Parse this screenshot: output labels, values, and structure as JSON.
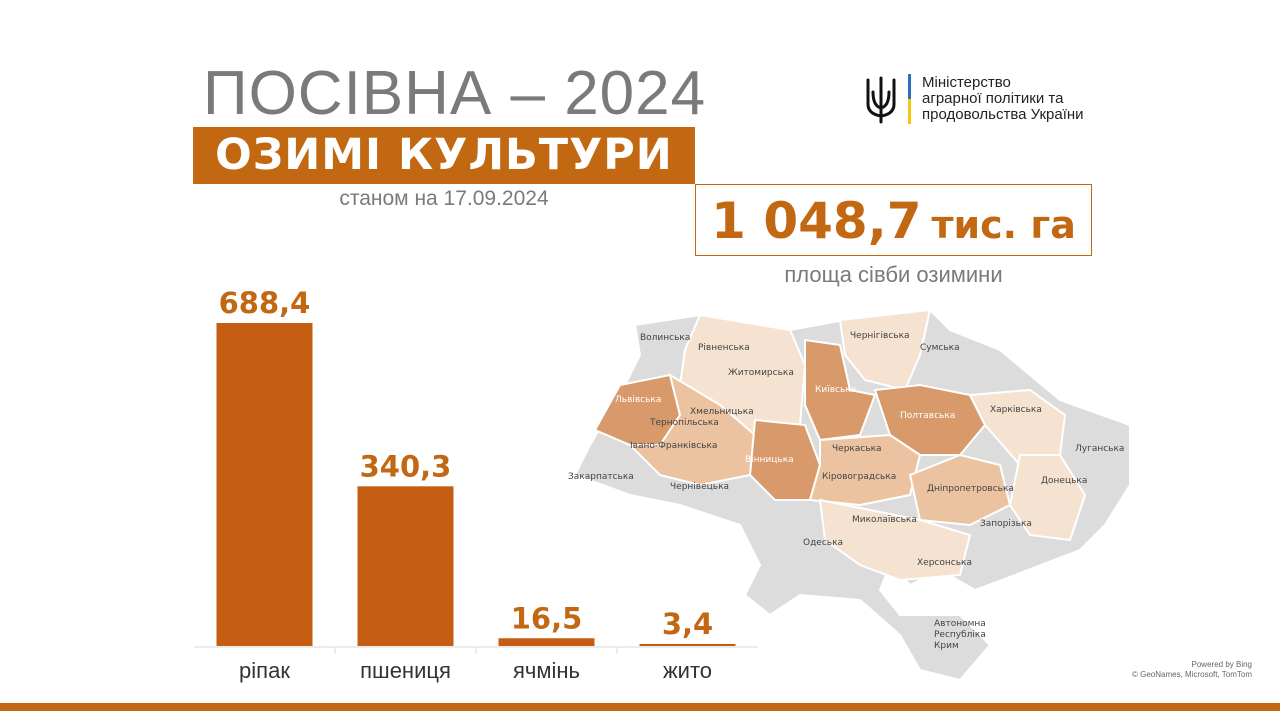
{
  "header": {
    "title": "ПОСІВНА – 2024",
    "subtitle": "ОЗИМІ КУЛЬТУРИ",
    "as_of": "станом на 17.09.2024"
  },
  "ministry": {
    "lines": [
      "Міністерство",
      "аграрної політики та",
      "продовольства України"
    ]
  },
  "total": {
    "value": "1 048,7",
    "unit": "тис. га",
    "label": "площа сівби озимини"
  },
  "chart_data": {
    "type": "bar",
    "categories": [
      "ріпак",
      "пшениця",
      "ячмінь",
      "жито"
    ],
    "values": [
      688.4,
      340.3,
      16.5,
      3.4
    ],
    "value_labels": [
      "688,4",
      "340,3",
      "16,5",
      "3,4"
    ],
    "title": "",
    "xlabel": "",
    "ylabel": "",
    "ylim": [
      0,
      688.4
    ],
    "grid": false,
    "bar_color": "#c45c12",
    "label_color": "#c26813"
  },
  "map": {
    "regions": [
      "Волинська",
      "Рівненська",
      "Житомирська",
      "Чернігівська",
      "Сумська",
      "Львівська",
      "Хмельницька",
      "Тернопільська",
      "Київська",
      "Полтавська",
      "Харківська",
      "Івано-Франківська",
      "Вінницька",
      "Черкаська",
      "Луганська",
      "Закарпатська",
      "Чернівецька",
      "Кіровоградська",
      "Дніпропетровська",
      "Донецька",
      "Миколаївська",
      "Запорізька",
      "Одеська",
      "Херсонська",
      "Автономна",
      "Республіка",
      "Крим"
    ]
  },
  "credit": {
    "line1": "Powered by Bing",
    "line2": "© GeoNames, Microsoft, TomTom"
  },
  "colors": {
    "accent": "#c26813",
    "gray_text": "#7a7a7a",
    "map_dark": "#d89a6a",
    "map_mid": "#ebc3a0",
    "map_light": "#f5e2d0",
    "map_none": "#dcdcdc"
  }
}
